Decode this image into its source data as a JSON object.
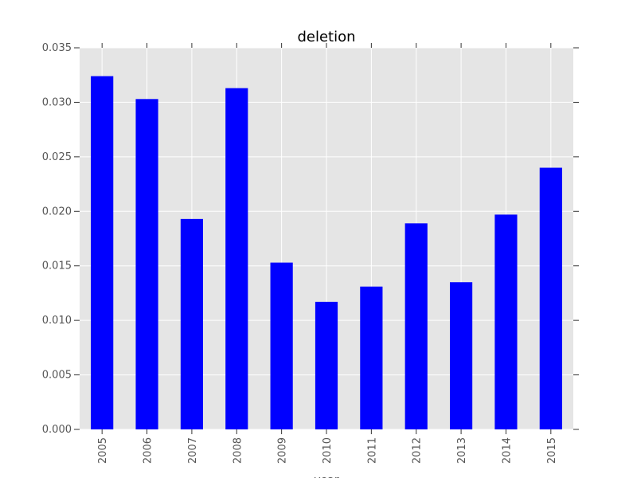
{
  "chart_data": {
    "type": "bar",
    "title": "deletion",
    "xlabel": "year",
    "ylabel": "",
    "categories": [
      "2005",
      "2006",
      "2007",
      "2008",
      "2009",
      "2010",
      "2011",
      "2012",
      "2013",
      "2014",
      "2015"
    ],
    "values": [
      0.0324,
      0.0303,
      0.0193,
      0.0313,
      0.0153,
      0.0117,
      0.0131,
      0.0189,
      0.0135,
      0.0197,
      0.024
    ],
    "ylim": [
      0,
      0.035
    ],
    "yticks": [
      "0.000",
      "0.005",
      "0.010",
      "0.015",
      "0.020",
      "0.025",
      "0.030",
      "0.035"
    ],
    "grid": true,
    "legend": "none",
    "colors": {
      "bar": "#0000ff",
      "plot_background": "#e5e5e5",
      "grid": "#ffffff"
    }
  }
}
